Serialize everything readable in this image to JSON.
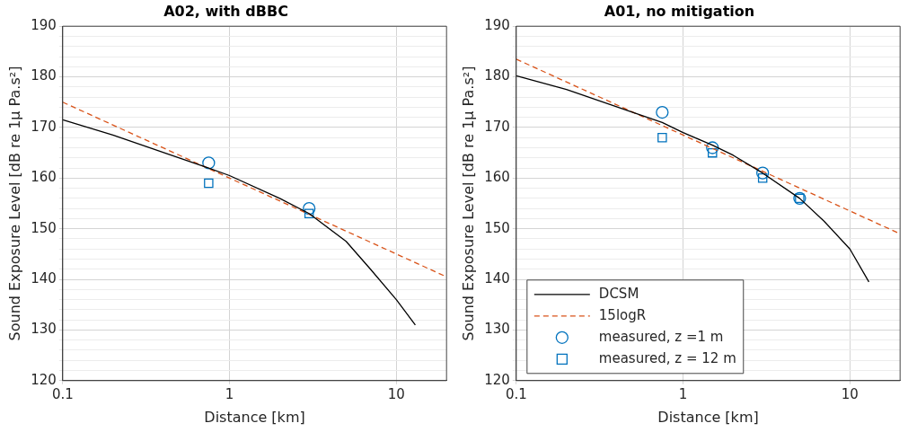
{
  "chart_data": [
    {
      "type": "line",
      "title": "A02, with dBBC",
      "xlabel": "Distance [km]",
      "ylabel": "Sound Exposure Level [dB re 1μ Pa.s²]",
      "log": "x",
      "grid": true,
      "legend": false,
      "xlim": [
        0.1,
        20
      ],
      "xticks": [
        0.1,
        1,
        10
      ],
      "ylim": [
        120,
        190
      ],
      "yticks": [
        120,
        {
          "value": 122,
          "label": null
        },
        {
          "value": 124,
          "label": null
        },
        {
          "value": 126,
          "label": null
        },
        {
          "value": 128,
          "label": null
        },
        130,
        {
          "value": 132,
          "label": null
        },
        {
          "value": 134,
          "label": null
        },
        {
          "value": 136,
          "label": null
        },
        {
          "value": 138,
          "label": null
        },
        140,
        {
          "value": 142,
          "label": null
        },
        {
          "value": 144,
          "label": null
        },
        {
          "value": 146,
          "label": null
        },
        {
          "value": 148,
          "label": null
        },
        150,
        {
          "value": 152,
          "label": null
        },
        {
          "value": 154,
          "label": null
        },
        {
          "value": 156,
          "label": null
        },
        {
          "value": 158,
          "label": null
        },
        160,
        {
          "value": 162,
          "label": null
        },
        {
          "value": 164,
          "label": null
        },
        {
          "value": 166,
          "label": null
        },
        {
          "value": 168,
          "label": null
        },
        170,
        {
          "value": 172,
          "label": null
        },
        {
          "value": 174,
          "label": null
        },
        {
          "value": 176,
          "label": null
        },
        {
          "value": 178,
          "label": null
        },
        180,
        {
          "value": 182,
          "label": null
        },
        {
          "value": 184,
          "label": null
        },
        {
          "value": 186,
          "label": null
        },
        {
          "value": 188,
          "label": null
        },
        190
      ],
      "series": [
        {
          "color": "#000000",
          "line_style": "solid",
          "marker": "none",
          "x": [
            0.1,
            0.2,
            0.5,
            0.75,
            1,
            2,
            3,
            5,
            7,
            10,
            13
          ],
          "values": [
            171.5,
            168.5,
            164,
            162,
            160.5,
            156,
            153,
            147.5,
            142,
            136,
            131
          ]
        },
        {
          "color": "#d95319",
          "line_style": "dashed",
          "marker": "none",
          "x": [
            0.1,
            20
          ],
          "values": [
            175,
            140.5
          ]
        },
        {
          "type": "scatter",
          "color": "#0072bd",
          "marker": "circle",
          "x": [
            0.75,
            3
          ],
          "values": [
            163,
            154
          ]
        },
        {
          "type": "scatter",
          "color": "#0072bd",
          "marker": "square",
          "x": [
            0.75,
            3
          ],
          "values": [
            159,
            153
          ]
        }
      ]
    },
    {
      "type": "line",
      "title": "A01, no mitigation",
      "xlabel": "Distance [km]",
      "ylabel": "Sound Exposure Level [dB re 1μ Pa.s²]",
      "log": "x",
      "grid": true,
      "legend": "bottom left",
      "xlim": [
        0.1,
        20
      ],
      "xticks": [
        0.1,
        1,
        10
      ],
      "ylim": [
        120,
        190
      ],
      "yticks": [
        120,
        {
          "value": 122,
          "label": null
        },
        {
          "value": 124,
          "label": null
        },
        {
          "value": 126,
          "label": null
        },
        {
          "value": 128,
          "label": null
        },
        130,
        {
          "value": 132,
          "label": null
        },
        {
          "value": 134,
          "label": null
        },
        {
          "value": 136,
          "label": null
        },
        {
          "value": 138,
          "label": null
        },
        140,
        {
          "value": 142,
          "label": null
        },
        {
          "value": 144,
          "label": null
        },
        {
          "value": 146,
          "label": null
        },
        {
          "value": 148,
          "label": null
        },
        150,
        {
          "value": 152,
          "label": null
        },
        {
          "value": 154,
          "label": null
        },
        {
          "value": 156,
          "label": null
        },
        {
          "value": 158,
          "label": null
        },
        160,
        {
          "value": 162,
          "label": null
        },
        {
          "value": 164,
          "label": null
        },
        {
          "value": 166,
          "label": null
        },
        {
          "value": 168,
          "label": null
        },
        170,
        {
          "value": 172,
          "label": null
        },
        {
          "value": 174,
          "label": null
        },
        {
          "value": 176,
          "label": null
        },
        {
          "value": 178,
          "label": null
        },
        180,
        {
          "value": 182,
          "label": null
        },
        {
          "value": 184,
          "label": null
        },
        {
          "value": 186,
          "label": null
        },
        {
          "value": 188,
          "label": null
        },
        190
      ],
      "series": [
        {
          "name": "DCSM",
          "color": "#000000",
          "line_style": "solid",
          "marker": "none",
          "x": [
            0.1,
            0.2,
            0.5,
            0.75,
            1,
            1.5,
            2,
            3,
            5,
            7,
            10,
            13
          ],
          "values": [
            180.2,
            177.5,
            173,
            171,
            169,
            166.5,
            164.5,
            161,
            156,
            151.5,
            146,
            139.5
          ]
        },
        {
          "name": "15logR",
          "color": "#d95319",
          "line_style": "dashed",
          "marker": "none",
          "x": [
            0.1,
            20
          ],
          "values": [
            183.5,
            149
          ]
        },
        {
          "name": "measured, z =1 m",
          "type": "scatter",
          "color": "#0072bd",
          "marker": "circle",
          "x": [
            0.75,
            1.5,
            3,
            5
          ],
          "values": [
            173,
            166,
            161,
            156
          ]
        },
        {
          "name": "measured, z = 12 m",
          "type": "scatter",
          "color": "#0072bd",
          "marker": "square",
          "x": [
            0.75,
            1.5,
            3,
            5
          ],
          "values": [
            168,
            165,
            160,
            156
          ]
        }
      ]
    }
  ]
}
